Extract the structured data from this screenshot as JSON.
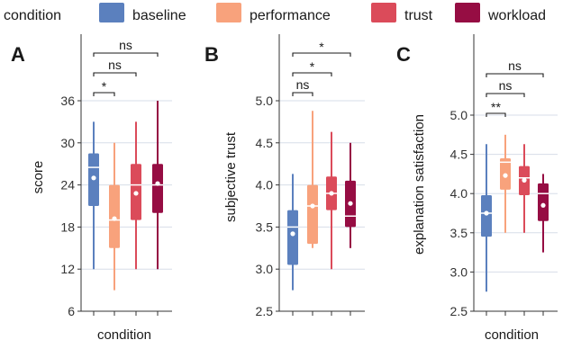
{
  "legend": {
    "title": "condition",
    "items": [
      {
        "label": "baseline",
        "color": "#5B80BE"
      },
      {
        "label": "performance",
        "color": "#F8A27C"
      },
      {
        "label": "trust",
        "color": "#DB4B5A"
      },
      {
        "label": "workload",
        "color": "#960D43"
      }
    ]
  },
  "chart_data": [
    {
      "type": "box",
      "panel": "A",
      "xlabel": "condition",
      "ylabel": "score",
      "ylim": [
        6,
        36
      ],
      "yticks": [
        6,
        12,
        18,
        24,
        30,
        36
      ],
      "grid": true,
      "categories": [
        "baseline",
        "performance",
        "trust",
        "workload"
      ],
      "boxes": [
        {
          "min": 12,
          "q1": 21,
          "median": 26.5,
          "q3": 28.5,
          "max": 33,
          "mean": 25
        },
        {
          "min": 9,
          "q1": 15,
          "median": 19,
          "q3": 24,
          "max": 30,
          "mean": 19.2
        },
        {
          "min": 12,
          "q1": 19,
          "median": 24,
          "q3": 27,
          "max": 33,
          "mean": 22.8
        },
        {
          "min": 12,
          "q1": 20,
          "median": 24,
          "q3": 27,
          "max": 36,
          "mean": 24.2
        }
      ],
      "significance": [
        {
          "from": 0,
          "to": 1,
          "label": "*"
        },
        {
          "from": 0,
          "to": 2,
          "label": "ns"
        },
        {
          "from": 0,
          "to": 3,
          "label": "ns"
        }
      ]
    },
    {
      "type": "box",
      "panel": "B",
      "xlabel": "",
      "ylabel": "subjective trust",
      "ylim": [
        2.5,
        5.0
      ],
      "yticks": [
        "2.5",
        "3.0",
        "3.5",
        "4.0",
        "4.5",
        "5.0"
      ],
      "grid": true,
      "categories": [
        "baseline",
        "performance",
        "trust",
        "workload"
      ],
      "boxes": [
        {
          "min": 2.75,
          "q1": 3.05,
          "median": 3.5,
          "q3": 3.7,
          "max": 4.13,
          "mean": 3.42
        },
        {
          "min": 3.25,
          "q1": 3.3,
          "median": 3.75,
          "q3": 4.0,
          "max": 4.88,
          "mean": 3.75
        },
        {
          "min": 3.0,
          "q1": 3.7,
          "median": 3.9,
          "q3": 4.1,
          "max": 4.63,
          "mean": 3.9
        },
        {
          "min": 3.25,
          "q1": 3.5,
          "median": 3.63,
          "q3": 4.05,
          "max": 4.5,
          "mean": 3.78
        }
      ],
      "significance": [
        {
          "from": 0,
          "to": 1,
          "label": "ns"
        },
        {
          "from": 0,
          "to": 2,
          "label": "*"
        },
        {
          "from": 0,
          "to": 3,
          "label": "*"
        }
      ]
    },
    {
      "type": "box",
      "panel": "C",
      "xlabel": "condition",
      "ylabel": "explanation satisfaction",
      "ylim": [
        2.5,
        5.0
      ],
      "yticks": [
        "2.5",
        "3.0",
        "3.5",
        "4.0",
        "4.5",
        "5.0"
      ],
      "grid": true,
      "categories": [
        "baseline",
        "performance",
        "trust",
        "workload"
      ],
      "boxes": [
        {
          "min": 2.75,
          "q1": 3.45,
          "median": 3.75,
          "q3": 3.98,
          "max": 4.63,
          "mean": 3.75
        },
        {
          "min": 3.5,
          "q1": 4.05,
          "median": 4.4,
          "q3": 4.45,
          "max": 4.75,
          "mean": 4.23
        },
        {
          "min": 3.5,
          "q1": 3.98,
          "median": 4.2,
          "q3": 4.35,
          "max": 4.63,
          "mean": 4.17
        },
        {
          "min": 3.25,
          "q1": 3.65,
          "median": 4.0,
          "q3": 4.13,
          "max": 4.25,
          "mean": 3.85
        }
      ],
      "significance": [
        {
          "from": 0,
          "to": 1,
          "label": "**"
        },
        {
          "from": 0,
          "to": 2,
          "label": "ns"
        },
        {
          "from": 0,
          "to": 3,
          "label": "ns"
        }
      ]
    }
  ]
}
